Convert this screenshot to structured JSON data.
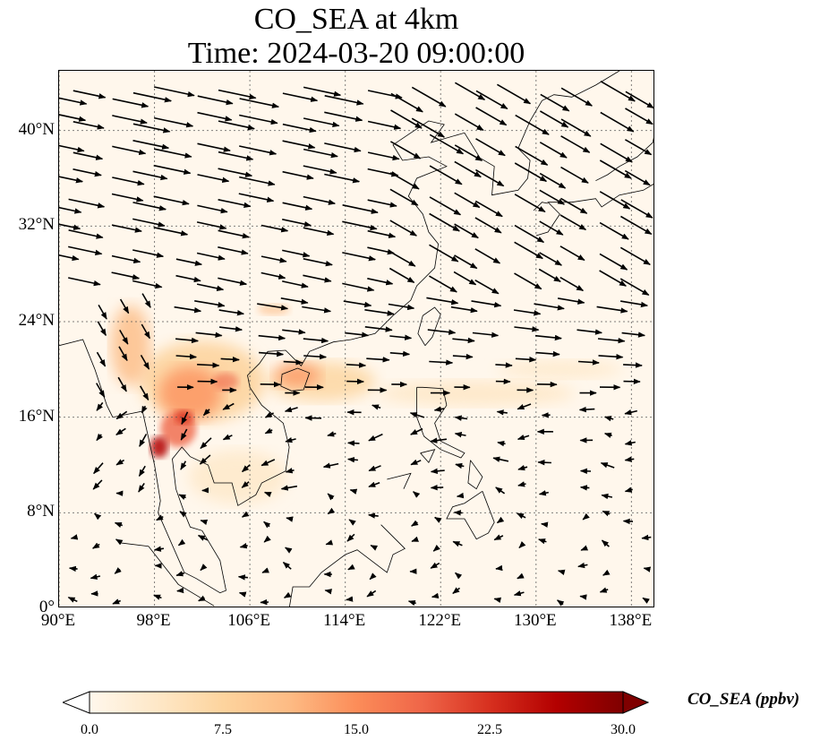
{
  "title": {
    "line1": "CO_SEA at 4km",
    "line2": "Time: 2024-03-20 09:00:00"
  },
  "map": {
    "lon_range": [
      90,
      140
    ],
    "lat_range": [
      0,
      45
    ],
    "lat_ticks": [
      "0°",
      "8°N",
      "16°N",
      "24°N",
      "32°N",
      "40°N"
    ],
    "lon_ticks": [
      "90°E",
      "98°E",
      "106°E",
      "114°E",
      "122°E",
      "130°E",
      "138°E"
    ],
    "gridlines": true,
    "background_color": "#fff7ec",
    "colormap": "OrRd",
    "plume_color_mid": "#ef6548",
    "plume_color_high": "#b30000"
  },
  "colorbar": {
    "label": "CO_SEA (ppbv)",
    "ticks": [
      "0.0",
      "7.5",
      "15.0",
      "22.5",
      "30.0"
    ],
    "range": [
      0,
      30
    ],
    "extend": "both",
    "colors": [
      "#fff7ec",
      "#fee8c8",
      "#fdd49e",
      "#fdbb84",
      "#fc8d59",
      "#ef6548",
      "#d7301f",
      "#b30000",
      "#7f0000"
    ]
  }
}
